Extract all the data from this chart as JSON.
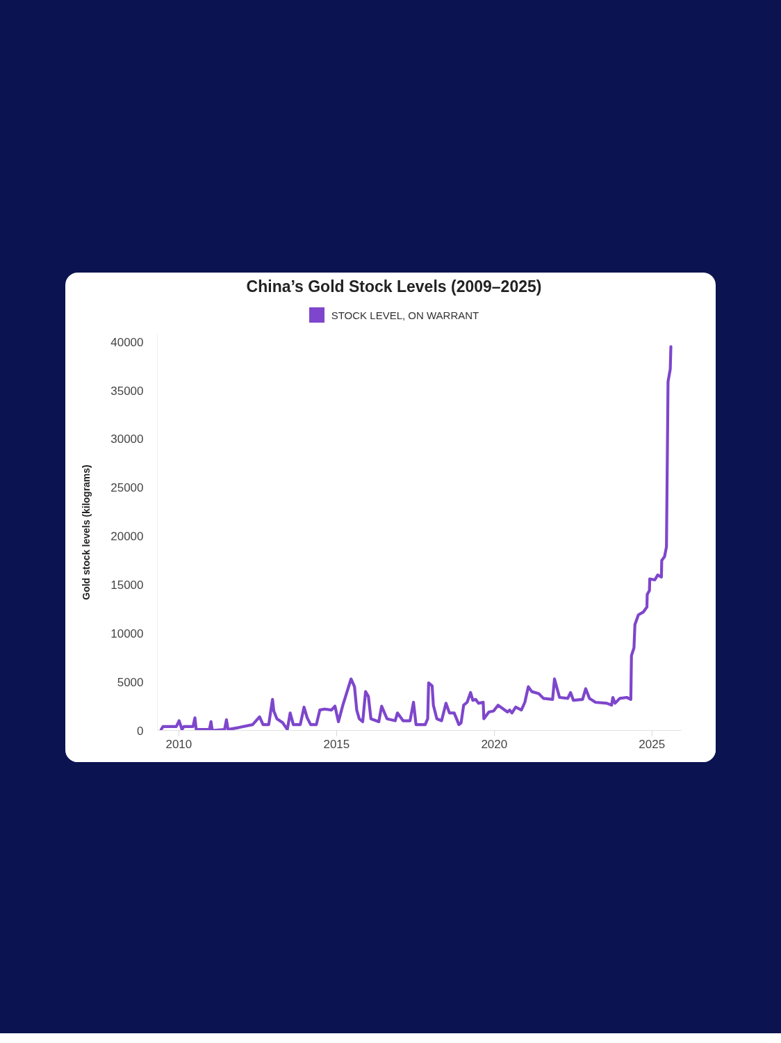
{
  "chart_data": {
    "type": "line",
    "title": "China’s Gold Stock Levels (2009–2025)",
    "ylabel": "Gold stock levels (kilograms)",
    "x": [
      2009.44,
      2009.5,
      2009.92,
      2010.01,
      2010.1,
      2010.16,
      2010.45,
      2010.51,
      2010.55,
      2010.97,
      2011.02,
      2011.06,
      2011.45,
      2011.51,
      2011.56,
      2011.9,
      2012.34,
      2012.56,
      2012.67,
      2012.85,
      2012.97,
      2013.01,
      2013.11,
      2013.29,
      2013.44,
      2013.53,
      2013.63,
      2013.85,
      2013.97,
      2014.07,
      2014.18,
      2014.36,
      2014.47,
      2014.62,
      2014.84,
      2014.95,
      2015.06,
      2015.2,
      2015.46,
      2015.57,
      2015.64,
      2015.72,
      2015.83,
      2015.92,
      2016.01,
      2016.09,
      2016.34,
      2016.43,
      2016.6,
      2016.86,
      2016.93,
      2017.11,
      2017.33,
      2017.44,
      2017.52,
      2017.81,
      2017.89,
      2017.92,
      2018.03,
      2018.07,
      2018.18,
      2018.33,
      2018.47,
      2018.58,
      2018.73,
      2018.88,
      2018.95,
      2019.03,
      2019.14,
      2019.25,
      2019.32,
      2019.41,
      2019.5,
      2019.65,
      2019.67,
      2019.83,
      2019.98,
      2020.12,
      2020.42,
      2020.49,
      2020.56,
      2020.68,
      2020.86,
      2020.97,
      2021.08,
      2021.19,
      2021.41,
      2021.56,
      2021.85,
      2021.91,
      2022.07,
      2022.33,
      2022.42,
      2022.51,
      2022.8,
      2022.9,
      2023.02,
      2023.21,
      2023.57,
      2023.72,
      2023.76,
      2023.83,
      2023.98,
      2024.2,
      2024.33,
      2024.35,
      2024.43,
      2024.46,
      2024.57,
      2024.73,
      2024.84,
      2024.85,
      2024.92,
      2024.93,
      2025.09,
      2025.18,
      2025.3,
      2025.31,
      2025.4,
      2025.46,
      2025.51,
      2025.58,
      2025.6
    ],
    "series": [
      {
        "name": "STOCK LEVEL, ON WARRANT",
        "color": "#7e46cc",
        "values": [
          100,
          400,
          400,
          1000,
          100,
          400,
          400,
          1300,
          100,
          100,
          900,
          0,
          100,
          1100,
          100,
          300,
          600,
          1400,
          600,
          600,
          3200,
          2000,
          1200,
          800,
          100,
          1800,
          600,
          600,
          2400,
          1300,
          600,
          600,
          2100,
          2200,
          2100,
          2500,
          900,
          2600,
          5300,
          4500,
          2100,
          1200,
          900,
          4000,
          3500,
          1200,
          900,
          2500,
          1200,
          1000,
          1800,
          1000,
          1000,
          2900,
          600,
          600,
          1200,
          4900,
          4600,
          2600,
          1200,
          1000,
          2800,
          1800,
          1800,
          600,
          800,
          2600,
          2900,
          3900,
          3100,
          3200,
          2800,
          2900,
          1200,
          1900,
          2000,
          2600,
          1900,
          2100,
          1800,
          2400,
          2100,
          2900,
          4500,
          4000,
          3800,
          3300,
          3200,
          5300,
          3400,
          3300,
          3900,
          3100,
          3200,
          4300,
          3300,
          2900,
          2800,
          2600,
          3400,
          2800,
          3300,
          3400,
          3200,
          7700,
          8500,
          10900,
          11900,
          12200,
          12700,
          14000,
          14400,
          15600,
          15500,
          16000,
          15800,
          17500,
          17900,
          18900,
          35900,
          37200,
          39500
        ]
      }
    ],
    "xlim": [
      2009.32,
      2025.93
    ],
    "ylim": [
      0,
      40800
    ],
    "xticks": [
      2010,
      2015,
      2020,
      2025
    ],
    "yticks": [
      0,
      5000,
      10000,
      15000,
      20000,
      25000,
      30000,
      35000,
      40000
    ],
    "grid": false,
    "legend": "top",
    "line_style": "solid"
  }
}
